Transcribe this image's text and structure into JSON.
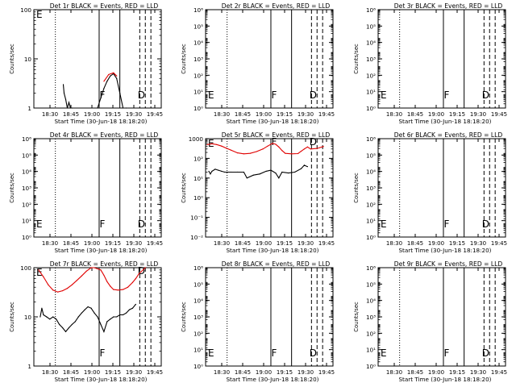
{
  "chart_data": [
    {
      "type": "line",
      "title": "Det 1r BLACK = Events, RED = LLD",
      "xlabel": "Start Time (30-Jun-18 18:18:20)",
      "ylabel": "Counts/sec",
      "xticks": [
        "18:30",
        "18:45",
        "19:00",
        "19:15",
        "19:30",
        "19:45"
      ],
      "yscale": "log",
      "ylim": [
        1,
        100
      ],
      "yticks": [
        "1",
        "10",
        "100"
      ],
      "markers": [
        "E",
        "F",
        "D"
      ],
      "series": [
        {
          "color": "#000000",
          "points": [
            [
              18.5,
              3.0
            ],
            [
              19,
              2.0
            ],
            [
              20,
              1.5
            ],
            [
              21,
              1.0
            ],
            [
              22,
              1.3
            ],
            [
              23,
              1.0
            ],
            [
              24,
              1.0
            ],
            [
              40,
              1.0
            ],
            [
              42,
              1.6
            ],
            [
              44,
              2.5
            ],
            [
              46,
              3.5
            ],
            [
              48,
              4.5
            ],
            [
              50,
              5.0
            ],
            [
              52,
              4.0
            ],
            [
              54,
              2.0
            ],
            [
              56,
              1.0
            ],
            [
              58,
              1.0
            ]
          ]
        },
        {
          "color": "#e00000",
          "points": [
            [
              44,
              3.5
            ],
            [
              47,
              4.8
            ],
            [
              50,
              5.2
            ],
            [
              52,
              4.5
            ]
          ]
        }
      ]
    },
    {
      "type": "line",
      "title": "Det 2r BLACK = Events, RED = LLD",
      "xlabel": "Start Time (30-Jun-18 18:18:20)",
      "ylabel": "Counts/sec",
      "xticks": [
        "18:30",
        "18:45",
        "19:00",
        "19:15",
        "19:30",
        "19:45"
      ],
      "yscale": "log",
      "ylim": [
        1,
        10000000
      ],
      "yticks": [
        "10⁰",
        "10¹",
        "10²",
        "10³",
        "10⁴",
        "10⁵",
        "10⁶"
      ],
      "markers": [
        "E",
        "F",
        "D"
      ],
      "series": []
    },
    {
      "type": "line",
      "title": "Det 3r BLACK = Events, RED = LLD",
      "xlabel": "Start Time (30-Jun-18 18:18:20)",
      "ylabel": "Counts/sec",
      "xticks": [
        "18:30",
        "18:45",
        "19:00",
        "19:15",
        "19:30",
        "19:45"
      ],
      "yscale": "log",
      "ylim": [
        1,
        10000000
      ],
      "yticks": [
        "10⁰",
        "10¹",
        "10²",
        "10³",
        "10⁴",
        "10⁵",
        "10⁶"
      ],
      "markers": [
        "E",
        "F",
        "D"
      ],
      "series": []
    },
    {
      "type": "line",
      "title": "Det 4r BLACK = Events, RED = LLD",
      "xlabel": "Start Time (30-Jun-18 18:18:20)",
      "ylabel": "Counts/sec",
      "xticks": [
        "18:30",
        "18:45",
        "19:00",
        "19:15",
        "19:30",
        "19:45"
      ],
      "yscale": "log",
      "ylim": [
        1,
        10000000
      ],
      "yticks": [
        "10⁰",
        "10¹",
        "10²",
        "10³",
        "10⁴",
        "10⁵",
        "10⁶"
      ],
      "markers": [
        "E",
        "F",
        "D"
      ],
      "series": []
    },
    {
      "type": "line",
      "title": "Det 5r BLACK = Events, RED = LLD",
      "xlabel": "Start Time (30-Jun-18 18:18:20)",
      "ylabel": "Counts/sec",
      "xticks": [
        "18:30",
        "18:45",
        "19:00",
        "19:15",
        "19:30",
        "19:45"
      ],
      "yscale": "log",
      "ylim": [
        0.01,
        1000
      ],
      "yticks": [
        "10⁻²",
        "10⁻¹",
        "10⁰",
        "10¹",
        "10²",
        "1000"
      ],
      "markers": [
        "E",
        "F",
        "D"
      ],
      "series": [
        {
          "color": "#e00000",
          "points": [
            [
              1,
              500
            ],
            [
              4,
              550
            ],
            [
              7,
              500
            ],
            [
              10,
              420
            ],
            [
              13,
              330
            ],
            [
              16,
              260
            ],
            [
              20,
              190
            ],
            [
              24,
              170
            ],
            [
              28,
              180
            ],
            [
              32,
              220
            ],
            [
              36,
              300
            ],
            [
              39,
              420
            ],
            [
              42,
              580
            ],
            [
              44,
              520
            ],
            [
              46,
              380
            ],
            [
              48,
              250
            ],
            [
              50,
              180
            ],
            [
              54,
              170
            ],
            [
              58,
              175
            ],
            [
              60,
              230
            ],
            [
              62,
              300
            ],
            [
              64,
              380
            ],
            [
              66,
              300
            ],
            [
              70,
              320
            ],
            [
              74,
              400
            ]
          ]
        },
        {
          "color": "#000000",
          "points": [
            [
              2,
              22
            ],
            [
              3,
              16
            ],
            [
              4,
              22
            ],
            [
              6,
              28
            ],
            [
              8,
              25
            ],
            [
              10,
              22
            ],
            [
              12,
              20
            ],
            [
              16,
              20
            ],
            [
              20,
              20
            ],
            [
              24,
              20
            ],
            [
              26,
              10
            ],
            [
              30,
              14
            ],
            [
              34,
              16
            ],
            [
              38,
              22
            ],
            [
              41,
              25
            ],
            [
              44,
              18
            ],
            [
              46,
              10
            ],
            [
              48,
              20
            ],
            [
              52,
              18
            ],
            [
              56,
              20
            ],
            [
              60,
              30
            ],
            [
              62,
              45
            ],
            [
              64,
              38
            ]
          ]
        }
      ]
    },
    {
      "type": "line",
      "title": "Det 6r BLACK = Events, RED = LLD",
      "xlabel": "Start Time (30-Jun-18 18:18:20)",
      "ylabel": "Counts/sec",
      "xticks": [
        "18:30",
        "18:45",
        "19:00",
        "19:15",
        "19:30",
        "19:45"
      ],
      "yscale": "log",
      "ylim": [
        1,
        10000000
      ],
      "yticks": [
        "10⁰",
        "10¹",
        "10²",
        "10³",
        "10⁴",
        "10⁵",
        "10⁶"
      ],
      "markers": [
        "E",
        "F",
        "D"
      ],
      "series": []
    },
    {
      "type": "line",
      "title": "Det 7r BLACK = Events, RED = LLD",
      "xlabel": "Start Time (30-Jun-18 18:18:20)",
      "ylabel": "Counts/sec",
      "xticks": [
        "18:30",
        "18:45",
        "19:00",
        "19:15",
        "19:30",
        "19:45"
      ],
      "yscale": "log",
      "ylim": [
        1,
        100
      ],
      "yticks": [
        "1",
        "10",
        "100"
      ],
      "markers": [
        "E",
        "F",
        "D"
      ],
      "series": [
        {
          "color": "#e00000",
          "points": [
            [
              3,
              90
            ],
            [
              6,
              65
            ],
            [
              9,
              45
            ],
            [
              12,
              35
            ],
            [
              15,
              32
            ],
            [
              18,
              34
            ],
            [
              21,
              38
            ],
            [
              24,
              45
            ],
            [
              27,
              55
            ],
            [
              30,
              68
            ],
            [
              33,
              85
            ],
            [
              36,
              100
            ],
            [
              38,
              100
            ],
            [
              42,
              90
            ],
            [
              44,
              70
            ],
            [
              46,
              52
            ],
            [
              48,
              42
            ],
            [
              50,
              36
            ],
            [
              53,
              35
            ],
            [
              56,
              36
            ],
            [
              59,
              40
            ],
            [
              62,
              50
            ],
            [
              64,
              60
            ],
            [
              66,
              75
            ],
            [
              70,
              100
            ]
          ]
        },
        {
          "color": "#000000",
          "points": [
            [
              4,
              10
            ],
            [
              5,
              15
            ],
            [
              6,
              11
            ],
            [
              8,
              10
            ],
            [
              10,
              9
            ],
            [
              12,
              10
            ],
            [
              14,
              9
            ],
            [
              16,
              7
            ],
            [
              18,
              6
            ],
            [
              20,
              5
            ],
            [
              22,
              6
            ],
            [
              24,
              7
            ],
            [
              26,
              8
            ],
            [
              28,
              10
            ],
            [
              30,
              12
            ],
            [
              32,
              14
            ],
            [
              34,
              16
            ],
            [
              36,
              15
            ],
            [
              38,
              12
            ],
            [
              40,
              10
            ],
            [
              42,
              7
            ],
            [
              44,
              5
            ],
            [
              46,
              8
            ],
            [
              48,
              9
            ],
            [
              50,
              10
            ],
            [
              52,
              10
            ],
            [
              54,
              11
            ],
            [
              56,
              11
            ],
            [
              58,
              12
            ],
            [
              60,
              14
            ],
            [
              62,
              15
            ],
            [
              64,
              18
            ]
          ]
        }
      ]
    },
    {
      "type": "line",
      "title": "Det 8r BLACK = Events, RED = LLD",
      "xlabel": "Start Time (30-Jun-18 18:18:20)",
      "ylabel": "Counts/sec",
      "xticks": [
        "18:30",
        "18:45",
        "19:00",
        "19:15",
        "19:30",
        "19:45"
      ],
      "yscale": "log",
      "ylim": [
        1,
        10000000
      ],
      "yticks": [
        "10⁰",
        "10¹",
        "10²",
        "10³",
        "10⁴",
        "10⁵",
        "10⁶"
      ],
      "markers": [
        "E",
        "F",
        "D"
      ],
      "series": []
    },
    {
      "type": "line",
      "title": "Det 9r BLACK = Events, RED = LLD",
      "xlabel": "Start Time (30-Jun-18 18:18:20)",
      "ylabel": "Counts/sec",
      "xticks": [
        "18:30",
        "18:45",
        "19:00",
        "19:15",
        "19:30",
        "19:45"
      ],
      "yscale": "log",
      "ylim": [
        1,
        10000000
      ],
      "yticks": [
        "10⁰",
        "10¹",
        "10²",
        "10³",
        "10⁴",
        "10⁵",
        "10⁶"
      ],
      "markers": [
        "E",
        "F",
        "D"
      ],
      "series": []
    }
  ]
}
